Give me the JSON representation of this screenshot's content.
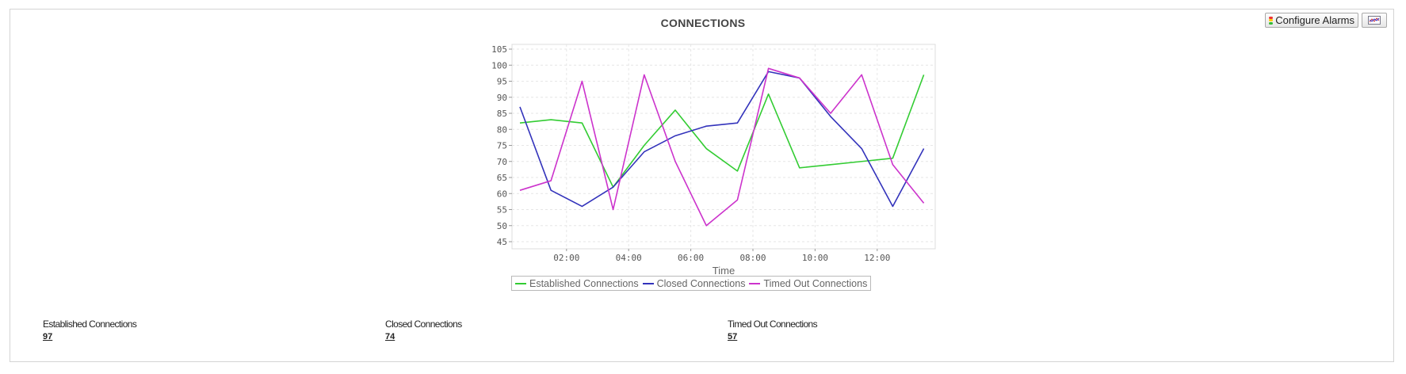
{
  "toolbar": {
    "configure_alarms_label": "Configure Alarms",
    "alarm_icon": "traffic-light-icon",
    "graph_icon": "line-graph-icon"
  },
  "chart_data": {
    "type": "line",
    "title": "CONNECTIONS",
    "xlabel": "Time",
    "ylabel": "",
    "ylim": [
      45,
      105
    ],
    "yticks": [
      "45",
      "50",
      "55",
      "60",
      "65",
      "70",
      "75",
      "80",
      "85",
      "90",
      "95",
      "100",
      "105"
    ],
    "xticks": [
      "02:00",
      "04:00",
      "06:00",
      "08:00",
      "10:00",
      "12:00"
    ],
    "grid": true,
    "legend_position": "bottom-center",
    "x": [
      "00:15",
      "01:15",
      "02:15",
      "03:15",
      "04:15",
      "05:15",
      "06:15",
      "07:15",
      "08:15",
      "09:15",
      "10:15",
      "11:15",
      "12:15",
      "13:15"
    ],
    "series": [
      {
        "name": "Established Connections",
        "color": "#33cc33",
        "values": [
          82,
          83,
          82,
          62,
          75,
          86,
          74,
          67,
          91,
          68,
          69,
          70,
          71,
          97
        ]
      },
      {
        "name": "Closed Connections",
        "color": "#3333bb",
        "values": [
          87,
          61,
          56,
          62,
          73,
          78,
          81,
          82,
          98,
          96,
          84,
          74,
          56,
          74
        ]
      },
      {
        "name": "Timed Out Connections",
        "color": "#cc33cc",
        "values": [
          61,
          64,
          95,
          55,
          97,
          70,
          50,
          58,
          99,
          96,
          85,
          97,
          69,
          57
        ]
      }
    ]
  },
  "summary": [
    {
      "label": "Established Connections",
      "value": "97"
    },
    {
      "label": "Closed Connections",
      "value": "74"
    },
    {
      "label": "Timed Out Connections",
      "value": "57"
    }
  ]
}
